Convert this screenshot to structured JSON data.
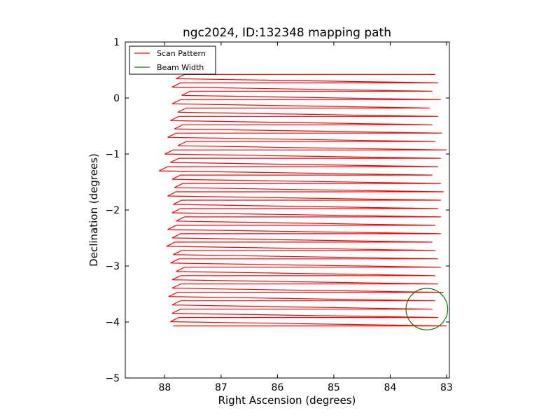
{
  "chart_data": {
    "type": "line",
    "title": "ngc2024, ID:132348 mapping path",
    "xlabel": "Right Ascension (degrees)",
    "ylabel": "Declination (degrees)",
    "xlim": [
      88.7,
      82.95
    ],
    "ylim": [
      -5,
      1
    ],
    "x_inverted": true,
    "grid": false,
    "legend_position": "top-left",
    "xticks": [
      88,
      87,
      86,
      85,
      84,
      83
    ],
    "yticks": [
      1,
      0,
      -1,
      -2,
      -3,
      -4,
      -5
    ],
    "colors": {
      "scan": "#ff0000",
      "beam": "#008000"
    },
    "series": [
      {
        "name": "Scan Pattern",
        "kind": "raster",
        "dec_start": 0.42,
        "dec_end": -4.07,
        "row_spacing": -0.15,
        "ra_left": [
          87.65,
          87.72,
          87.55,
          87.72,
          87.62,
          87.75,
          87.68,
          87.8,
          87.62,
          87.85,
          87.75,
          87.95,
          87.72,
          87.68,
          87.8,
          87.7,
          87.72,
          87.65,
          87.8,
          87.72,
          87.82,
          87.7,
          87.75,
          87.65,
          87.72,
          87.72,
          87.78,
          87.72,
          87.72,
          87.75,
          87.85
        ],
        "ra_right": [
          83.2,
          83.15,
          83.25,
          83.1,
          83.3,
          83.15,
          83.25,
          83.08,
          83.2,
          83.0,
          83.1,
          83.15,
          83.25,
          83.1,
          83.05,
          83.1,
          83.15,
          83.1,
          83.2,
          83.1,
          83.25,
          83.2,
          83.15,
          83.1,
          83.2,
          83.15,
          83.05,
          83.2,
          83.25,
          83.15,
          83.0
        ]
      },
      {
        "name": "Beam Width",
        "kind": "circle",
        "center_ra": 83.35,
        "center_dec": -3.77,
        "radius_deg": 0.37
      }
    ]
  }
}
